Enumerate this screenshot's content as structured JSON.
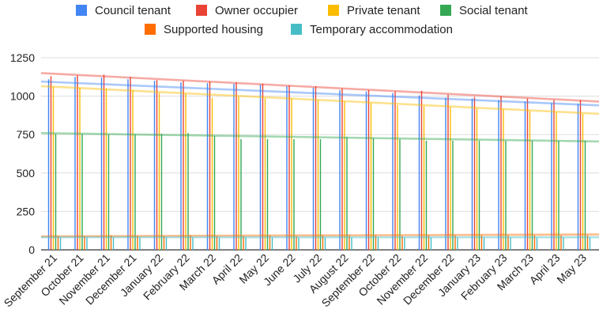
{
  "chart_data": {
    "type": "bar",
    "categories": [
      "September 21",
      "October 21",
      "November 21",
      "December 21",
      "January 22",
      "February 22",
      "March 22",
      "April 22",
      "May 22",
      "June 22",
      "July 22",
      "August 22",
      "September 22",
      "October 22",
      "November 22",
      "December 22",
      "January 23",
      "February 23",
      "March 23",
      "April 23",
      "May 23"
    ],
    "series": [
      {
        "name": "Council tenant",
        "color": "#4285f4",
        "values": [
          1110,
          1125,
          1120,
          1110,
          1100,
          1090,
          1085,
          1080,
          1075,
          1065,
          1055,
          1040,
          1030,
          1020,
          1005,
          990,
          985,
          975,
          965,
          955,
          950
        ]
      },
      {
        "name": "Owner occupier",
        "color": "#ea4335",
        "values": [
          1130,
          1135,
          1140,
          1125,
          1105,
          1100,
          1095,
          1090,
          1080,
          1070,
          1065,
          1050,
          1040,
          1030,
          1035,
          1010,
          995,
          1000,
          985,
          975,
          975
        ]
      },
      {
        "name": "Private tenant",
        "color": "#fbbc04",
        "values": [
          1060,
          1055,
          1050,
          1040,
          1020,
          1015,
          990,
          995,
          985,
          985,
          975,
          965,
          955,
          940,
          935,
          930,
          920,
          915,
          905,
          895,
          885
        ]
      },
      {
        "name": "Social tenant",
        "color": "#34a853",
        "values": [
          755,
          755,
          750,
          750,
          755,
          760,
          740,
          720,
          720,
          720,
          720,
          735,
          725,
          720,
          710,
          710,
          710,
          710,
          710,
          710,
          710
        ]
      },
      {
        "name": "Supported housing",
        "color": "#ff6d01",
        "values": [
          90,
          90,
          95,
          90,
          90,
          95,
          90,
          90,
          95,
          90,
          95,
          95,
          95,
          90,
          95,
          95,
          95,
          95,
          95,
          95,
          95
        ]
      },
      {
        "name": "Temporary accommodation",
        "color": "#46bdc6",
        "values": [
          80,
          80,
          80,
          80,
          80,
          80,
          80,
          80,
          80,
          80,
          80,
          80,
          80,
          80,
          80,
          80,
          80,
          80,
          80,
          80,
          80
        ]
      }
    ],
    "trendlines": [
      {
        "series": "Council tenant",
        "color": "#4285f4",
        "start": 1095,
        "end": 940
      },
      {
        "series": "Owner occupier",
        "color": "#ea4335",
        "start": 1150,
        "end": 965
      },
      {
        "series": "Private tenant",
        "color": "#fbbc04",
        "start": 1065,
        "end": 885
      },
      {
        "series": "Social tenant",
        "color": "#34a853",
        "start": 760,
        "end": 705
      },
      {
        "series": "Supported housing",
        "color": "#ff6d01",
        "start": 88,
        "end": 100
      },
      {
        "series": "Temporary accommodation",
        "color": "#46bdc6",
        "start": 82,
        "end": 82
      }
    ],
    "title": "",
    "xlabel": "",
    "ylabel": "",
    "ylim": [
      0,
      1250
    ],
    "yticks": [
      "0",
      "250",
      "500",
      "750",
      "1000",
      "1250"
    ],
    "grid": true,
    "legend_position": "top"
  }
}
